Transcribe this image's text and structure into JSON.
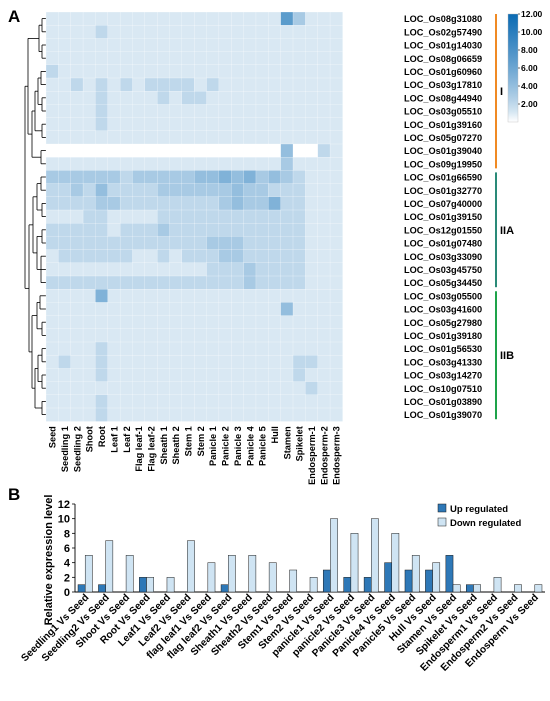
{
  "panel_a": {
    "label": "A",
    "chart_data": {
      "type": "heatmap",
      "columns": [
        "Seed",
        "Seedling 1",
        "Seedling 2",
        "Shoot",
        "Root",
        "Leaf 1",
        "Leaf 2",
        "Flag leaf-1",
        "Flag leaf-2",
        "Sheath 1",
        "Sheath 2",
        "Stem 1",
        "Stem 2",
        "Panicle 1",
        "Panicle 2",
        "Panicle 3",
        "Panicle 4",
        "Panicle 5",
        "Hull",
        "Stamen",
        "Spikelet",
        "Endosperm-1",
        "Endosperm-2",
        "Endosperm-3"
      ],
      "rows": [
        "LOC_Os08g31080",
        "LOC_Os02g57490",
        "LOC_Os01g14030",
        "LOC_Os08g06659",
        "LOC_Os01g60960",
        "LOC_Os03g17810",
        "LOC_Os08g44940",
        "LOC_Os03g05510",
        "LOC_Os01g39160",
        "LOC_Os05g07270",
        "LOC_Os01g39040",
        "LOC_Os09g19950",
        "LOC_Os01g66590",
        "LOC_Os01g32770",
        "LOC_Os07g40000",
        "LOC_Os01g39150",
        "LOC_Os12g01550",
        "LOC_Os01g07480",
        "LOC_Os03g33090",
        "LOC_Os03g45750",
        "LOC_Os05g34450",
        "LOC_Os03g05500",
        "LOC_Os03g41600",
        "LOC_Os05g27980",
        "LOC_Os01g39180",
        "LOC_Os01g56530",
        "LOC_Os03g41330",
        "LOC_Os03g14270",
        "LOC_Os10g07510",
        "LOC_Os01g03890",
        "LOC_Os01g39070"
      ],
      "values": [
        [
          1,
          1,
          1,
          1,
          1,
          1,
          1,
          1,
          1,
          1,
          1,
          1,
          1,
          1,
          1,
          1,
          1,
          1,
          1,
          7,
          3,
          1,
          1,
          1
        ],
        [
          1,
          1,
          1,
          1,
          2,
          1,
          1,
          1,
          1,
          1,
          1,
          1,
          1,
          1,
          1,
          1,
          1,
          1,
          1,
          1,
          1,
          1,
          1,
          1
        ],
        [
          1,
          1,
          1,
          1,
          1,
          1,
          1,
          1,
          1,
          1,
          1,
          1,
          1,
          1,
          1,
          1,
          1,
          1,
          1,
          1,
          1,
          1,
          1,
          1
        ],
        [
          1,
          1,
          1,
          1,
          1,
          1,
          1,
          1,
          1,
          1,
          1,
          1,
          1,
          1,
          1,
          1,
          1,
          1,
          1,
          1,
          1,
          1,
          1,
          1
        ],
        [
          2,
          1,
          1,
          1,
          1,
          1,
          1,
          1,
          1,
          1,
          1,
          1,
          1,
          1,
          1,
          1,
          1,
          1,
          1,
          1,
          1,
          1,
          1,
          1
        ],
        [
          1,
          1,
          2,
          1,
          2,
          1,
          2,
          1,
          2,
          2,
          2,
          2,
          1,
          2,
          1,
          1,
          1,
          1,
          1,
          1,
          1,
          1,
          1,
          1
        ],
        [
          1,
          1,
          1,
          1,
          2,
          1,
          1,
          1,
          1,
          2,
          1,
          2,
          2,
          1,
          1,
          1,
          1,
          1,
          1,
          1,
          1,
          1,
          1,
          1
        ],
        [
          1,
          1,
          1,
          1,
          2,
          1,
          1,
          1,
          1,
          1,
          1,
          1,
          1,
          1,
          1,
          1,
          1,
          1,
          1,
          1,
          1,
          1,
          1,
          1
        ],
        [
          1,
          1,
          1,
          1,
          2,
          1,
          1,
          1,
          1,
          1,
          1,
          1,
          1,
          1,
          1,
          1,
          1,
          1,
          1,
          1,
          1,
          1,
          1,
          1
        ],
        [
          1,
          1,
          1,
          1,
          1,
          1,
          1,
          1,
          1,
          1,
          1,
          1,
          1,
          1,
          1,
          1,
          1,
          1,
          1,
          1,
          1,
          1,
          1,
          1
        ],
        [
          0,
          0,
          0,
          0,
          0,
          0,
          0,
          0,
          0,
          0,
          0,
          0,
          0,
          0,
          0,
          0,
          0,
          0,
          0,
          4,
          0,
          0,
          2,
          1
        ],
        [
          1,
          1,
          1,
          1,
          1,
          1,
          1,
          1,
          1,
          1,
          1,
          1,
          1,
          1,
          1,
          1,
          1,
          1,
          1,
          3,
          1,
          1,
          1,
          1
        ],
        [
          3,
          3,
          3,
          3,
          3,
          3,
          2,
          3,
          3,
          3,
          3,
          3,
          4,
          4,
          5,
          4,
          5,
          3,
          4,
          3,
          2,
          1,
          1,
          1
        ],
        [
          2,
          2,
          3,
          2,
          4,
          2,
          2,
          2,
          2,
          3,
          3,
          3,
          3,
          3,
          3,
          4,
          3,
          3,
          2,
          2,
          2,
          1,
          1,
          1
        ],
        [
          2,
          2,
          2,
          2,
          3,
          3,
          2,
          2,
          2,
          2,
          2,
          2,
          2,
          2,
          3,
          4,
          3,
          3,
          5,
          2,
          2,
          1,
          1,
          1
        ],
        [
          1,
          1,
          1,
          2,
          2,
          1,
          1,
          1,
          1,
          2,
          2,
          2,
          2,
          2,
          2,
          2,
          2,
          2,
          2,
          2,
          2,
          1,
          1,
          1
        ],
        [
          2,
          2,
          2,
          2,
          2,
          1,
          2,
          2,
          2,
          3,
          2,
          2,
          2,
          2,
          2,
          2,
          2,
          2,
          2,
          2,
          2,
          1,
          1,
          1
        ],
        [
          2,
          2,
          2,
          2,
          2,
          2,
          2,
          2,
          2,
          2,
          2,
          2,
          2,
          3,
          3,
          3,
          2,
          2,
          2,
          2,
          2,
          1,
          1,
          1
        ],
        [
          1,
          2,
          2,
          2,
          2,
          2,
          2,
          1,
          1,
          2,
          1,
          2,
          2,
          2,
          3,
          3,
          2,
          2,
          2,
          2,
          2,
          1,
          1,
          1
        ],
        [
          1,
          1,
          1,
          1,
          1,
          1,
          1,
          1,
          1,
          1,
          1,
          1,
          1,
          2,
          2,
          2,
          3,
          2,
          2,
          2,
          2,
          1,
          1,
          1
        ],
        [
          2,
          2,
          2,
          2,
          2,
          2,
          2,
          2,
          2,
          2,
          2,
          2,
          2,
          2,
          2,
          2,
          3,
          2,
          2,
          2,
          2,
          1,
          1,
          1
        ],
        [
          1,
          1,
          1,
          1,
          5,
          1,
          1,
          1,
          1,
          1,
          1,
          1,
          1,
          1,
          1,
          1,
          1,
          1,
          1,
          1,
          1,
          1,
          1,
          1
        ],
        [
          1,
          1,
          1,
          1,
          1,
          1,
          1,
          1,
          1,
          1,
          1,
          1,
          1,
          1,
          1,
          1,
          1,
          1,
          1,
          4,
          1,
          1,
          1,
          1
        ],
        [
          1,
          1,
          1,
          1,
          1,
          1,
          1,
          1,
          1,
          1,
          1,
          1,
          1,
          1,
          1,
          1,
          1,
          1,
          1,
          1,
          1,
          1,
          1,
          1
        ],
        [
          1,
          1,
          1,
          1,
          1,
          1,
          1,
          1,
          1,
          1,
          1,
          1,
          1,
          1,
          1,
          1,
          1,
          1,
          1,
          1,
          1,
          1,
          1,
          1
        ],
        [
          1,
          1,
          1,
          1,
          2,
          1,
          1,
          1,
          1,
          1,
          1,
          1,
          1,
          1,
          1,
          1,
          1,
          1,
          1,
          1,
          1,
          1,
          1,
          1
        ],
        [
          1,
          2,
          1,
          1,
          2,
          1,
          1,
          1,
          1,
          1,
          1,
          1,
          1,
          1,
          1,
          1,
          1,
          1,
          1,
          1,
          2,
          2,
          1,
          1
        ],
        [
          1,
          1,
          1,
          1,
          2,
          1,
          1,
          1,
          1,
          1,
          1,
          1,
          1,
          1,
          1,
          1,
          1,
          1,
          1,
          1,
          2,
          1,
          1,
          1
        ],
        [
          1,
          1,
          1,
          1,
          1,
          1,
          1,
          1,
          1,
          1,
          1,
          1,
          1,
          1,
          1,
          1,
          1,
          1,
          1,
          1,
          1,
          2,
          1,
          1
        ],
        [
          1,
          1,
          1,
          1,
          2,
          1,
          1,
          1,
          1,
          1,
          1,
          1,
          1,
          1,
          1,
          1,
          1,
          1,
          1,
          1,
          1,
          1,
          1,
          1
        ],
        [
          1,
          1,
          1,
          1,
          2,
          1,
          1,
          1,
          1,
          1,
          1,
          1,
          1,
          1,
          1,
          1,
          1,
          1,
          1,
          1,
          1,
          1,
          1,
          1
        ]
      ],
      "colorbar": {
        "ticks": [
          "12.00",
          "10.00",
          "8.00",
          "6.00",
          "4.00",
          "2.00"
        ],
        "min": 0,
        "max": 12,
        "color_low": "#ffffff",
        "color_high": "#0a6ab3"
      },
      "groups": [
        {
          "label": "I",
          "start": 0,
          "end": 11,
          "color": "#f08a24"
        },
        {
          "label": "IIA",
          "start": 12,
          "end": 20,
          "color": "#2a8a78"
        },
        {
          "label": "IIB",
          "start": 21,
          "end": 30,
          "color": "#1ea34a"
        }
      ]
    }
  },
  "panel_b": {
    "label": "B",
    "chart_data": {
      "type": "bar",
      "ylabel": "Relative expression level",
      "ylim": [
        0,
        12
      ],
      "yticks": [
        "0",
        "2",
        "4",
        "6",
        "8",
        "10",
        "12"
      ],
      "categories": [
        "Seedling1 Vs Seed",
        "Seedling2 Vs Seed",
        "Shoot Vs Seed",
        "Root Vs Seed",
        "Leaf1 Vs Seed",
        "Leaf2 Vs Seed",
        "flag leaf1 Vs Seed",
        "flag leaf2 Vs Seed",
        "Sheath1 Vs Seed",
        "Sheath2 Vs Seed",
        "Stem1 Vs Seed",
        "Stem2 Vs Seed",
        "panicle1 Vs Seed",
        "panicle2 Vs Seed",
        "Panicle3 Vs Seed",
        "Panicle4 Vs Seed",
        "Panicle5 Vs Seed",
        "Hull Vs Seed",
        "Stamen Vs Seed",
        "Spikelet Vs Seed",
        "Endosperm1 Vs Seed",
        "Endosperm2 Vs Seed",
        "Endosperm Vs Seed"
      ],
      "series": [
        {
          "name": "Up regulated",
          "color": "#2e78b7",
          "values": [
            1,
            1,
            0,
            2,
            0,
            0,
            0,
            1,
            0,
            0,
            0,
            0,
            3,
            2,
            2,
            4,
            3,
            3,
            5,
            1,
            0,
            0,
            0
          ]
        },
        {
          "name": "Down regulated",
          "color": "#cfe4f3",
          "values": [
            5,
            7,
            5,
            2,
            2,
            7,
            4,
            5,
            5,
            4,
            3,
            2,
            10,
            8,
            10,
            8,
            5,
            4,
            1,
            1,
            2,
            1,
            1
          ]
        }
      ],
      "legend_position": "top-right"
    }
  }
}
